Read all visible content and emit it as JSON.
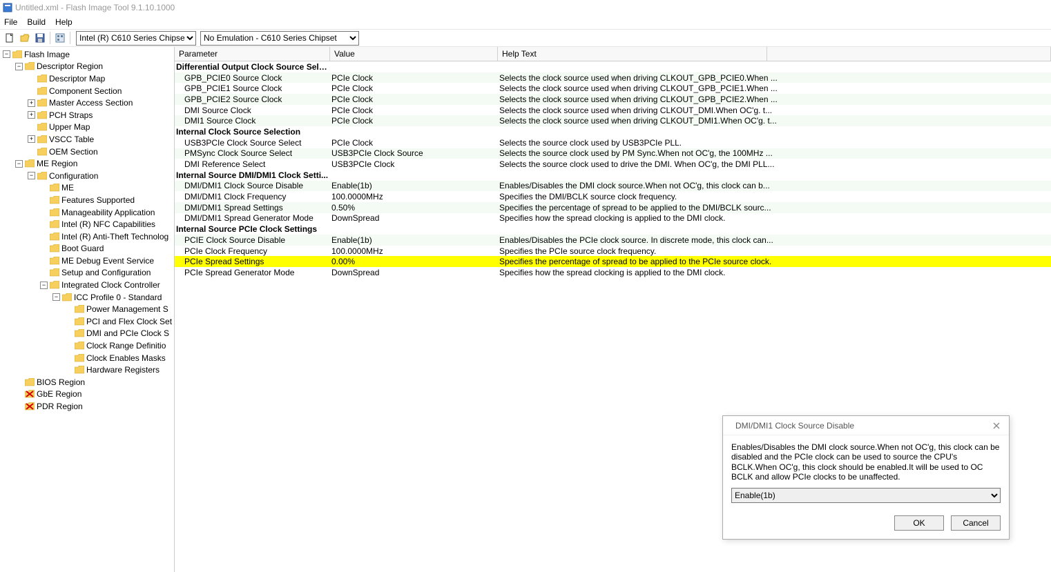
{
  "title": "Untitled.xml - Flash Image Tool 9.1.10.1000",
  "menus": [
    "File",
    "Build",
    "Help"
  ],
  "toolbar": {
    "select1": "Intel (R) C610 Series Chipset",
    "select2": "No Emulation - C610 Series Chipset"
  },
  "tree": [
    {
      "d": 0,
      "t": "-",
      "i": "f",
      "l": "Flash Image"
    },
    {
      "d": 1,
      "t": "-",
      "i": "f",
      "l": "Descriptor Region"
    },
    {
      "d": 2,
      "t": "",
      "i": "f",
      "l": "Descriptor Map"
    },
    {
      "d": 2,
      "t": "",
      "i": "f",
      "l": "Component Section"
    },
    {
      "d": 2,
      "t": "+",
      "i": "f",
      "l": "Master Access Section"
    },
    {
      "d": 2,
      "t": "+",
      "i": "f",
      "l": "PCH Straps"
    },
    {
      "d": 2,
      "t": "",
      "i": "f",
      "l": "Upper Map"
    },
    {
      "d": 2,
      "t": "+",
      "i": "f",
      "l": "VSCC Table"
    },
    {
      "d": 2,
      "t": "",
      "i": "f",
      "l": "OEM Section"
    },
    {
      "d": 1,
      "t": "-",
      "i": "f",
      "l": "ME Region"
    },
    {
      "d": 2,
      "t": "-",
      "i": "f",
      "l": "Configuration"
    },
    {
      "d": 3,
      "t": "",
      "i": "f",
      "l": "ME"
    },
    {
      "d": 3,
      "t": "",
      "i": "f",
      "l": "Features Supported"
    },
    {
      "d": 3,
      "t": "",
      "i": "f",
      "l": "Manageability Application"
    },
    {
      "d": 3,
      "t": "",
      "i": "f",
      "l": "Intel (R) NFC Capabilities"
    },
    {
      "d": 3,
      "t": "",
      "i": "f",
      "l": "Intel (R) Anti-Theft Technolog"
    },
    {
      "d": 3,
      "t": "",
      "i": "f",
      "l": "Boot Guard"
    },
    {
      "d": 3,
      "t": "",
      "i": "f",
      "l": "ME Debug Event Service"
    },
    {
      "d": 3,
      "t": "",
      "i": "f",
      "l": "Setup and Configuration"
    },
    {
      "d": 3,
      "t": "-",
      "i": "f",
      "l": "Integrated Clock Controller"
    },
    {
      "d": 4,
      "t": "-",
      "i": "f",
      "l": "ICC Profile 0 - Standard"
    },
    {
      "d": 5,
      "t": "",
      "i": "f",
      "l": "Power Management S"
    },
    {
      "d": 5,
      "t": "",
      "i": "f",
      "l": "PCI and Flex Clock Set"
    },
    {
      "d": 5,
      "t": "",
      "i": "f",
      "l": "DMI and PCIe Clock S"
    },
    {
      "d": 5,
      "t": "",
      "i": "f",
      "l": "Clock Range Definitio"
    },
    {
      "d": 5,
      "t": "",
      "i": "f",
      "l": "Clock Enables Masks"
    },
    {
      "d": 5,
      "t": "",
      "i": "f",
      "l": "Hardware Registers"
    },
    {
      "d": 1,
      "t": "",
      "i": "f",
      "l": "BIOS Region"
    },
    {
      "d": 1,
      "t": "",
      "i": "x",
      "l": "GbE Region"
    },
    {
      "d": 1,
      "t": "",
      "i": "x",
      "l": "PDR Region"
    }
  ],
  "columns": {
    "param": "Parameter",
    "value": "Value",
    "help": "Help Text"
  },
  "rows": [
    {
      "g": true,
      "p": "Differential Output Clock Source Sele..."
    },
    {
      "p": "GPB_PCIE0 Source Clock",
      "v": "PCIe Clock",
      "h": "Selects the clock source used when driving CLKOUT_GPB_PCIE0.When ..."
    },
    {
      "p": "GPB_PCIE1 Source Clock",
      "v": "PCIe Clock",
      "h": "Selects the clock source used when driving CLKOUT_GPB_PCIE1.When ..."
    },
    {
      "p": "GPB_PCIE2 Source Clock",
      "v": "PCIe Clock",
      "h": "Selects the clock source used when driving CLKOUT_GPB_PCIE2.When ..."
    },
    {
      "p": "DMI Source Clock",
      "v": "PCIe Clock",
      "h": "Selects the clock source used when driving CLKOUT_DMI.When OC'g. t..."
    },
    {
      "p": "DMI1 Source Clock",
      "v": "PCIe Clock",
      "h": "Selects the clock source used when driving CLKOUT_DMI1.When OC'g. t..."
    },
    {
      "g": true,
      "p": "Internal Clock Source Selection"
    },
    {
      "p": "USB3PCIe Clock Source Select",
      "v": "PCIe Clock",
      "h": "Selects the source clock used by USB3PCIe PLL."
    },
    {
      "p": "PMSync Clock Source Select",
      "v": "USB3PCIe Clock Source",
      "h": "Selects the source clock used by PM Sync.When not OC'g, the 100MHz ..."
    },
    {
      "p": "DMI Reference Select",
      "v": "USB3PCIe Clock",
      "h": "Selects the source clock used to drive the DMI. When OC'g, the DMI PLL..."
    },
    {
      "g": true,
      "p": "Internal Source DMI/DMI1 Clock Setti..."
    },
    {
      "p": "DMI/DMI1 Clock Source Disable",
      "v": "Enable(1b)",
      "h": "Enables/Disables the DMI clock source.When not OC'g, this clock can b..."
    },
    {
      "p": "DMI/DMI1 Clock Frequency",
      "v": "100.0000MHz",
      "h": "Specifies the DMI/BCLK source clock frequency."
    },
    {
      "p": "DMI/DMI1 Spread Settings",
      "v": "0.50%",
      "h": "Specifies the percentage of spread to be applied to the DMI/BCLK sourc..."
    },
    {
      "p": "DMI/DMI1 Spread Generator Mode",
      "v": "DownSpread",
      "h": "Specifies how the spread clocking is applied to the DMI clock."
    },
    {
      "g": true,
      "p": "Internal Source PCIe Clock Settings"
    },
    {
      "p": "PCIE Clock Source Disable",
      "v": "Enable(1b)",
      "h": "Enables/Disables the PCIe clock source.  In discrete mode, this clock can..."
    },
    {
      "p": "PCIe Clock Frequency",
      "v": "100.0000MHz",
      "h": "Specifies the PCIe source clock frequency."
    },
    {
      "sel": true,
      "p": "PCIe Spread Settings",
      "v": "0.00%",
      "h": "Specifies the percentage of spread to be applied to the PCIe source clock."
    },
    {
      "p": "PCIe Spread Generator Mode",
      "v": "DownSpread",
      "h": "Specifies how the spread clocking is applied to the DMI clock."
    }
  ],
  "dialog": {
    "title": "DMI/DMI1 Clock Source Disable",
    "text": "Enables/Disables the DMI clock source.When not OC'g, this clock can be disabled and the PCIe clock can be used to source the CPU's BCLK.When OC'g, this clock should be enabled.It will be used to OC BCLK and allow PCIe clocks to be unaffected.",
    "value": "Enable(1b)",
    "ok": "OK",
    "cancel": "Cancel"
  },
  "colors": {
    "highlight": "#ffff00",
    "alt_row": "#f4faf4",
    "folder": "#f7cf5e",
    "folder_stroke": "#c9a227"
  }
}
